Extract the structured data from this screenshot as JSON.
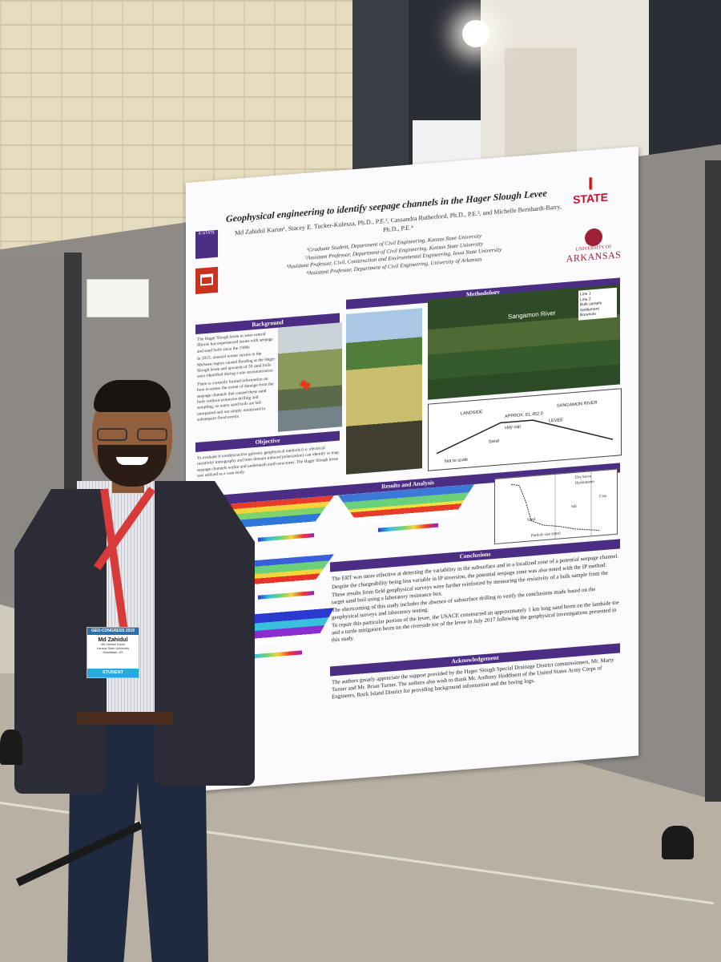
{
  "poster": {
    "title": "Geophysical engineering to identify seepage channels in the Hager Slough Levee",
    "authors": "Md Zahidul Karim¹, Stacey E. Tucker-Kulesza, Ph.D., P.E.², Cassandra Rutherford, Ph.D., P.E.³, and Michelle Bernhardt-Barry, Ph.D., P.E.⁴",
    "affiliations": [
      "¹Graduate Student, Department of Civil Engineering, Kansas State University",
      "²Assistant Professor, Department of Civil Engineering, Kansas State University",
      "³Assistant Professor, Civil, Construction and Environmental Engineering, Iowa State University",
      "⁴Assistant Professor, Department of Civil Engineering, University of Arkansas"
    ],
    "logos": {
      "kstate": "K-STATE",
      "isu_letter": "I",
      "isu": "STATE",
      "ark_top": "UNIVERSITY OF",
      "ark_name": "ARKANSAS"
    },
    "sections": {
      "background": "Background",
      "methodology": "Methodology",
      "objective": "Objective",
      "results": "Results and Analysis",
      "conclusions": "Conclusions",
      "acknowledgement": "Acknowledgement"
    },
    "background_bullets": [
      "The Hager Slough levee in west-central Illinois has experienced issues with seepage and sand boils since the 1990s.",
      "In 2015, unusual winter storms in the Midwest region caused flooding at the Hager Slough levee and upwards of 50 sand boils were identified during a site reconnaissance.",
      "There is currently limited information on how to assess the extent of damage from the seepage channels that caused these sand boils without extensive drilling and sampling, so many sand boils are left unrepaired and are simply monitored in subsequent flood events."
    ],
    "objective_text": "To evaluate if nondestructive galvanic geophysical methods (i.e. electrical resistivity tomography and time domain induced polarization) can identify or map seepage channels within and underneath earth structures. The Hager Slough levee was utilized as a case study.",
    "aerial": {
      "river": "Sangamon River",
      "legend": [
        "Line 1",
        "Line 2",
        "Bulk sample",
        "Settlement",
        "Borehole"
      ]
    },
    "levee_diagram": {
      "landside": "LANDSIDE",
      "river": "SANGAMON RIVER",
      "levee": "LEVEE",
      "elevation": "APPROX. EL 452.0",
      "sand": "Sand",
      "clay_cap": "clay cap",
      "scale": "Not to scale"
    },
    "grain_plot": {
      "legend": [
        "Dry Sieve",
        "Hydrometer"
      ],
      "xlabel": "Particle size (mm)",
      "labels": [
        "Sand",
        "Silt",
        "Clay"
      ]
    },
    "conclusions": [
      "The ERT was more effective at detecting the variability in the subsurface and in a localized zone of a potential seepage channel.",
      "Despite the chargeability being less variable in IP inversion, the potential seepage zone was also noted with the IP method.",
      "These results from field geophysical surveys were further reinforced by measuring the resistivity of a bulk sample from the target sand boil using a laboratory resistance box.",
      "The shortcoming of this study includes the absence of subsurface drilling to verify the conclusions made based on the geophysical surveys and laboratory testing.",
      "To repair this particular portion of the levee, the USACE constructed an approximately 1 km long sand berm on the landside toe and a turtle mitigation berm on the riverside toe of the levee in July 2017 following the geophysical investigations presented in this study."
    ],
    "acknowledgement": "The authors greatly appreciate the support provided by the Hager Slough Special Drainage District commissioners, Mr. Marty Turner and Mr. Brian Turner. The authors also wish to thank Mr. Anthony Hoddinott of the United States Army Corps of Engineers, Rock Island District for providing background information and the boring logs."
  },
  "badge": {
    "event": "GEO-CONGRESS 2019",
    "name": "Md Zahidul",
    "full_name": "Md Zahidul Karim",
    "org": "Kansas State University",
    "location": "Manhattan, KS",
    "type": "STUDENT"
  },
  "colors": {
    "poster_accent": "#4b2e83",
    "badge_header": "#2d6fa8",
    "badge_type": "#29a9e0"
  }
}
